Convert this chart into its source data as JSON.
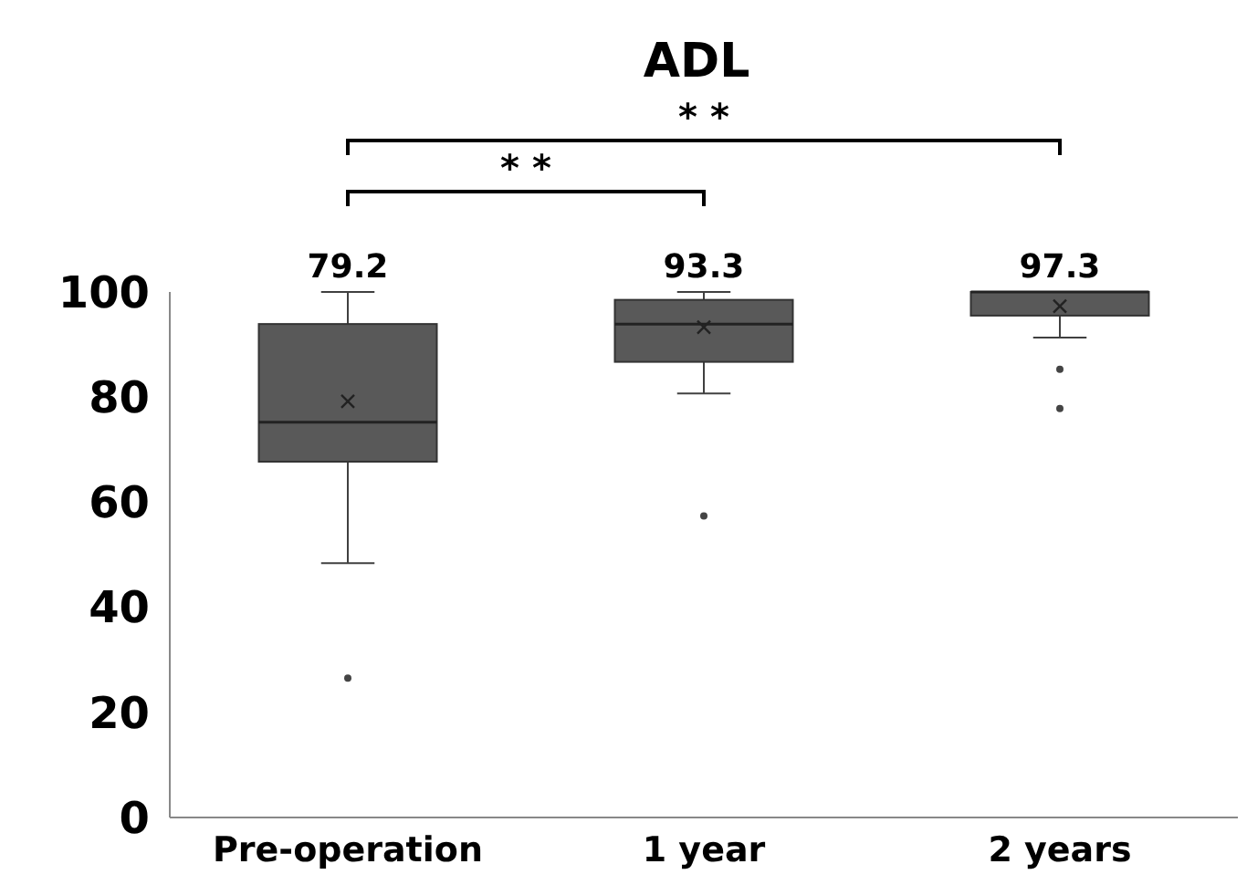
{
  "chart_data": {
    "type": "box",
    "title": "ADL",
    "categories": [
      "Pre-operation",
      "1 year",
      "2 years"
    ],
    "color": "#595959",
    "boxes": [
      {
        "low": 48.4,
        "q1": 67.7,
        "median": 75.2,
        "q3": 93.9,
        "high": 100,
        "mean": 79.2,
        "outliers": [
          26.5
        ]
      },
      {
        "low": 80.7,
        "q1": 86.7,
        "median": 93.9,
        "q3": 98.5,
        "high": 100,
        "mean": 93.3,
        "outliers": [
          57.4
        ]
      },
      {
        "low": 91.3,
        "q1": 95.5,
        "median": 100,
        "q3": 100,
        "high": 100,
        "mean": 97.3,
        "outliers": [
          85.3,
          77.8
        ]
      }
    ],
    "ylim": [
      0,
      100
    ],
    "yticks": [
      0,
      20,
      40,
      60,
      80,
      100
    ],
    "grid": false,
    "annotations": [
      {
        "text": "79.2",
        "x": "Pre-operation",
        "y": 100
      },
      {
        "text": "93.3",
        "x": "1 year",
        "y": 100
      },
      {
        "text": "97.3",
        "x": "2 years",
        "y": 100
      },
      "* *",
      "* *"
    ]
  }
}
